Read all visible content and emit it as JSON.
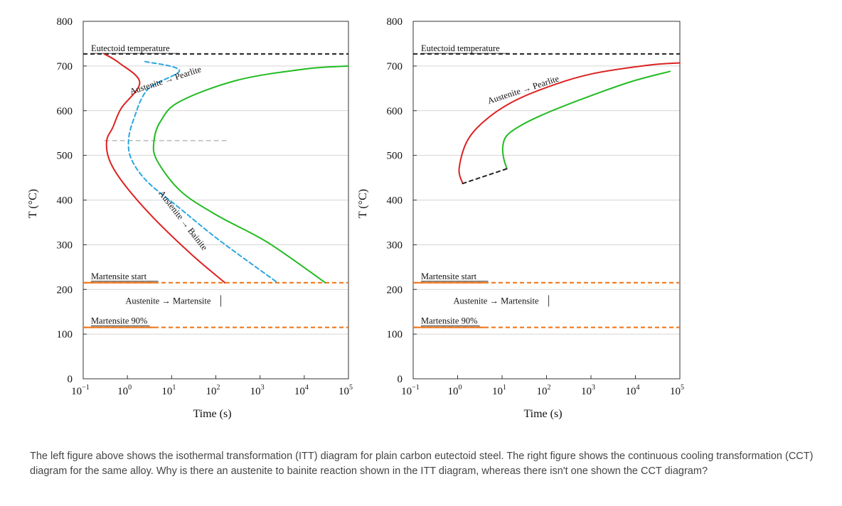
{
  "question": "The left figure above shows the isothermal transformation (ITT) diagram for plain carbon eutectoid steel. The right figure shows the continuous cooling transformation (CCT) diagram for the same alloy. Why is there an austenite to bainite reaction shown in the ITT diagram, whereas there isn't one shown the CCT diagram?",
  "chart_data": [
    {
      "type": "line",
      "name": "ITT diagram",
      "xlabel": "Time (s)",
      "ylabel": "T (°C)",
      "xscale": "log",
      "xlim": [
        0.1,
        100000
      ],
      "ylim": [
        0,
        800
      ],
      "x_ticks": [
        {
          "base": "10",
          "exp": "−1"
        },
        {
          "base": "10",
          "exp": "0"
        },
        {
          "base": "10",
          "exp": "1"
        },
        {
          "base": "10",
          "exp": "2"
        },
        {
          "base": "10",
          "exp": "3"
        },
        {
          "base": "10",
          "exp": "4"
        },
        {
          "base": "10",
          "exp": "5"
        }
      ],
      "y_ticks": [
        "800",
        "700",
        "600",
        "500",
        "400",
        "300",
        "200",
        "100",
        "0"
      ],
      "series": [
        {
          "name": "transformation start",
          "color": "#dd2222",
          "style": "solid",
          "points": [
            [
              0.3,
              727
            ],
            [
              0.65,
              707
            ],
            [
              1.9,
              663
            ],
            [
              0.72,
              605
            ],
            [
              0.47,
              563
            ],
            [
              0.34,
              533
            ],
            [
              0.39,
              490
            ],
            [
              0.78,
              440
            ],
            [
              3.5,
              365
            ],
            [
              27,
              280
            ],
            [
              160,
              215
            ]
          ]
        },
        {
          "name": "50% transformation",
          "color": "#2aa7e0",
          "style": "dashed",
          "points": [
            [
              2.5,
              710
            ],
            [
              15,
              690
            ],
            [
              2.9,
              648
            ],
            [
              1.4,
              582
            ],
            [
              1.06,
              533
            ],
            [
              1.25,
              490
            ],
            [
              2.9,
              440
            ],
            [
              16,
              380
            ],
            [
              120,
              310
            ],
            [
              2500,
              215
            ]
          ]
        },
        {
          "name": "transformation finish",
          "color": "#22bb22",
          "style": "solid",
          "points": [
            [
              100000,
              700
            ],
            [
              10000,
              693
            ],
            [
              300,
              668
            ],
            [
              15,
              620
            ],
            [
              5.6,
              576
            ],
            [
              4,
              533
            ],
            [
              4.6,
              490
            ],
            [
              16,
              420
            ],
            [
              110,
              365
            ],
            [
              1500,
              305
            ],
            [
              30000,
              215
            ]
          ]
        }
      ],
      "reference_lines": [
        {
          "name": "Eutectoid temperature",
          "y": 727,
          "color": "#222222",
          "style": "dashed"
        },
        {
          "name": "Martensite start",
          "y": 215,
          "color": "#f07a20",
          "style": "dashed"
        },
        {
          "name": "Martensite 90%",
          "y": 115,
          "color": "#f07a20",
          "style": "dashed"
        },
        {
          "name": "nose",
          "y": 533,
          "x_range": [
            0.3,
            200
          ],
          "color": "#999999",
          "style": "dashed"
        }
      ],
      "annotations": [
        {
          "text": "Eutectoid temperature",
          "x": 0.15,
          "y": 733
        },
        {
          "text": "Austenite → Pearlite",
          "x": 1.2,
          "y": 636,
          "rotation": -18
        },
        {
          "text": "Austenite → Bainite",
          "x": 5,
          "y": 415,
          "rotation": 52
        },
        {
          "text": "Martensite start",
          "x": 0.15,
          "y": 223
        },
        {
          "text": "Austenite → Martensite",
          "x": 0.9,
          "y": 168
        },
        {
          "text": "Martensite 90%",
          "x": 0.15,
          "y": 123
        }
      ]
    },
    {
      "type": "line",
      "name": "CCT diagram",
      "xlabel": "Time (s)",
      "ylabel": "T (°C)",
      "xscale": "log",
      "xlim": [
        0.1,
        100000
      ],
      "ylim": [
        0,
        800
      ],
      "x_ticks": [
        {
          "base": "10",
          "exp": "−1"
        },
        {
          "base": "10",
          "exp": "0"
        },
        {
          "base": "10",
          "exp": "1"
        },
        {
          "base": "10",
          "exp": "2"
        },
        {
          "base": "10",
          "exp": "3"
        },
        {
          "base": "10",
          "exp": "4"
        },
        {
          "base": "10",
          "exp": "5"
        }
      ],
      "y_ticks": [
        "800",
        "700",
        "600",
        "500",
        "400",
        "300",
        "200",
        "100",
        "0"
      ],
      "series": [
        {
          "name": "transformation start",
          "color": "#dd2222",
          "style": "solid",
          "points": [
            [
              100000,
              707
            ],
            [
              20000,
              702
            ],
            [
              1000,
              682
            ],
            [
              100,
              652
            ],
            [
              16,
              618
            ],
            [
              3.8,
              575
            ],
            [
              1.6,
              530
            ],
            [
              1.08,
              470
            ],
            [
              1.3,
              437
            ]
          ]
        },
        {
          "name": "transformation finish",
          "color": "#22bb22",
          "style": "solid",
          "points": [
            [
              60000,
              688
            ],
            [
              8000,
              665
            ],
            [
              800,
              630
            ],
            [
              120,
              598
            ],
            [
              30,
              570
            ],
            [
              13,
              545
            ],
            [
              10.4,
              520
            ],
            [
              10.8,
              495
            ],
            [
              12.8,
              470
            ]
          ]
        },
        {
          "name": "transformation stop",
          "color": "#222222",
          "style": "dashed",
          "points": [
            [
              1.3,
              437
            ],
            [
              12.8,
              470
            ]
          ]
        }
      ],
      "reference_lines": [
        {
          "name": "Eutectoid temperature",
          "y": 727,
          "color": "#222222",
          "style": "dashed"
        },
        {
          "name": "Martensite start",
          "y": 215,
          "color": "#f07a20",
          "style": "dashed"
        },
        {
          "name": "Martensite 90%",
          "y": 115,
          "color": "#f07a20",
          "style": "dashed"
        }
      ],
      "annotations": [
        {
          "text": "Eutectoid temperature",
          "x": 0.15,
          "y": 733
        },
        {
          "text": "Austenite → Pearlite",
          "x": 5,
          "y": 615,
          "rotation": -18
        },
        {
          "text": "Martensite start",
          "x": 0.15,
          "y": 223
        },
        {
          "text": "Austenite → Martensite",
          "x": 0.8,
          "y": 168
        },
        {
          "text": "Martensite 90%",
          "x": 0.15,
          "y": 123
        }
      ]
    }
  ]
}
